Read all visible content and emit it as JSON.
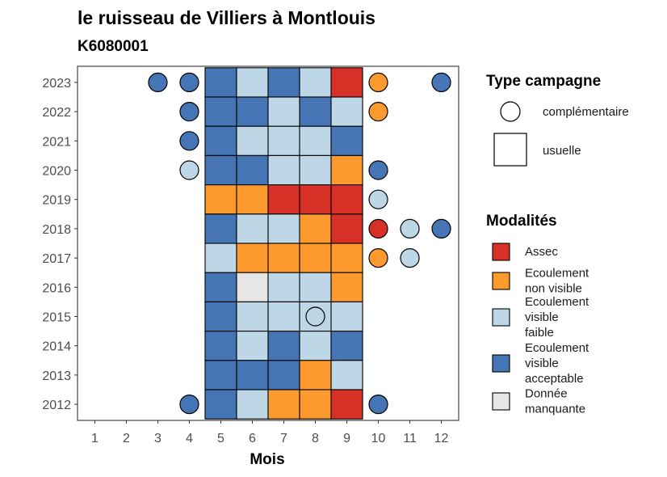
{
  "chart_data": {
    "type": "heatmap",
    "title": "le ruisseau de Villiers à Montlouis",
    "subtitle": "K6080001",
    "xlabel": "Mois",
    "ylabel": "",
    "x_ticks": [
      1,
      2,
      3,
      4,
      5,
      6,
      7,
      8,
      9,
      10,
      11,
      12
    ],
    "y_ticks": [
      2012,
      2013,
      2014,
      2015,
      2016,
      2017,
      2018,
      2019,
      2020,
      2021,
      2022,
      2023
    ],
    "colors": {
      "Assec": "#d73027",
      "Ecoulement non visible": "#fd9a2e",
      "Ecoulement visible faible": "#bdd7e7",
      "Ecoulement visible acceptable": "#4575b4",
      "Donnée manquante": "#e6e6e6"
    },
    "legend_campagne": {
      "title": "Type campagne",
      "items": [
        {
          "key": "complementaire",
          "label": "complémentaire",
          "shape": "circle"
        },
        {
          "key": "usuelle",
          "label": "usuelle",
          "shape": "square"
        }
      ]
    },
    "legend_modalites": {
      "title": "Modalités",
      "items": [
        {
          "key": "Assec",
          "lines": [
            "Assec"
          ]
        },
        {
          "key": "Ecoulement non visible",
          "lines": [
            "Ecoulement",
            "non visible"
          ]
        },
        {
          "key": "Ecoulement visible faible",
          "lines": [
            "Ecoulement",
            "visible",
            "faible"
          ]
        },
        {
          "key": "Ecoulement visible acceptable",
          "lines": [
            "Ecoulement",
            "visible",
            "acceptable"
          ]
        },
        {
          "key": "Donnée manquante",
          "lines": [
            "Donnée",
            "manquante"
          ]
        }
      ]
    },
    "usuelle": [
      {
        "year": 2023,
        "values": [
          "Ecoulement visible acceptable",
          "Ecoulement visible faible",
          "Ecoulement visible acceptable",
          "Ecoulement visible faible",
          "Assec"
        ]
      },
      {
        "year": 2022,
        "values": [
          "Ecoulement visible acceptable",
          "Ecoulement visible acceptable",
          "Ecoulement visible faible",
          "Ecoulement visible acceptable",
          "Ecoulement visible faible"
        ]
      },
      {
        "year": 2021,
        "values": [
          "Ecoulement visible acceptable",
          "Ecoulement visible faible",
          "Ecoulement visible faible",
          "Ecoulement visible faible",
          "Ecoulement visible acceptable"
        ]
      },
      {
        "year": 2020,
        "values": [
          "Ecoulement visible acceptable",
          "Ecoulement visible acceptable",
          "Ecoulement visible faible",
          "Ecoulement visible faible",
          "Ecoulement non visible"
        ]
      },
      {
        "year": 2019,
        "values": [
          "Ecoulement non visible",
          "Ecoulement non visible",
          "Assec",
          "Assec",
          "Assec"
        ]
      },
      {
        "year": 2018,
        "values": [
          "Ecoulement visible acceptable",
          "Ecoulement visible faible",
          "Ecoulement visible faible",
          "Ecoulement non visible",
          "Assec"
        ]
      },
      {
        "year": 2017,
        "values": [
          "Ecoulement visible faible",
          "Ecoulement non visible",
          "Ecoulement non visible",
          "Ecoulement non visible",
          "Ecoulement non visible"
        ]
      },
      {
        "year": 2016,
        "values": [
          "Ecoulement visible acceptable",
          "Donnée manquante",
          "Ecoulement visible faible",
          "Ecoulement visible faible",
          "Ecoulement non visible"
        ]
      },
      {
        "year": 2015,
        "values": [
          "Ecoulement visible acceptable",
          "Ecoulement visible faible",
          "Ecoulement visible faible",
          "Ecoulement visible faible",
          "Ecoulement visible faible"
        ]
      },
      {
        "year": 2014,
        "values": [
          "Ecoulement visible acceptable",
          "Ecoulement visible faible",
          "Ecoulement visible acceptable",
          "Ecoulement visible faible",
          "Ecoulement visible acceptable"
        ]
      },
      {
        "year": 2013,
        "values": [
          "Ecoulement visible acceptable",
          "Ecoulement visible acceptable",
          "Ecoulement visible acceptable",
          "Ecoulement non visible",
          "Ecoulement visible faible"
        ]
      },
      {
        "year": 2012,
        "values": [
          "Ecoulement visible acceptable",
          "Ecoulement visible faible",
          "Ecoulement non visible",
          "Ecoulement non visible",
          "Assec"
        ]
      }
    ],
    "usuelle_months": [
      5,
      6,
      7,
      8,
      9
    ],
    "complementaire": [
      {
        "year": 2023,
        "month": 3,
        "value": "Ecoulement visible acceptable"
      },
      {
        "year": 2023,
        "month": 4,
        "value": "Ecoulement visible acceptable"
      },
      {
        "year": 2023,
        "month": 10,
        "value": "Ecoulement non visible"
      },
      {
        "year": 2023,
        "month": 12,
        "value": "Ecoulement visible acceptable"
      },
      {
        "year": 2022,
        "month": 4,
        "value": "Ecoulement visible acceptable"
      },
      {
        "year": 2022,
        "month": 10,
        "value": "Ecoulement non visible"
      },
      {
        "year": 2021,
        "month": 4,
        "value": "Ecoulement visible acceptable"
      },
      {
        "year": 2020,
        "month": 4,
        "value": "Ecoulement visible faible"
      },
      {
        "year": 2020,
        "month": 10,
        "value": "Ecoulement visible acceptable"
      },
      {
        "year": 2019,
        "month": 10,
        "value": "Ecoulement visible faible"
      },
      {
        "year": 2018,
        "month": 10,
        "value": "Assec"
      },
      {
        "year": 2018,
        "month": 11,
        "value": "Ecoulement visible faible"
      },
      {
        "year": 2018,
        "month": 12,
        "value": "Ecoulement visible acceptable"
      },
      {
        "year": 2017,
        "month": 10,
        "value": "Ecoulement non visible"
      },
      {
        "year": 2017,
        "month": 11,
        "value": "Ecoulement visible faible"
      },
      {
        "year": 2015,
        "month": 8,
        "value": "Ecoulement visible faible"
      },
      {
        "year": 2012,
        "month": 4,
        "value": "Ecoulement visible acceptable"
      },
      {
        "year": 2012,
        "month": 10,
        "value": "Ecoulement visible acceptable"
      }
    ]
  }
}
